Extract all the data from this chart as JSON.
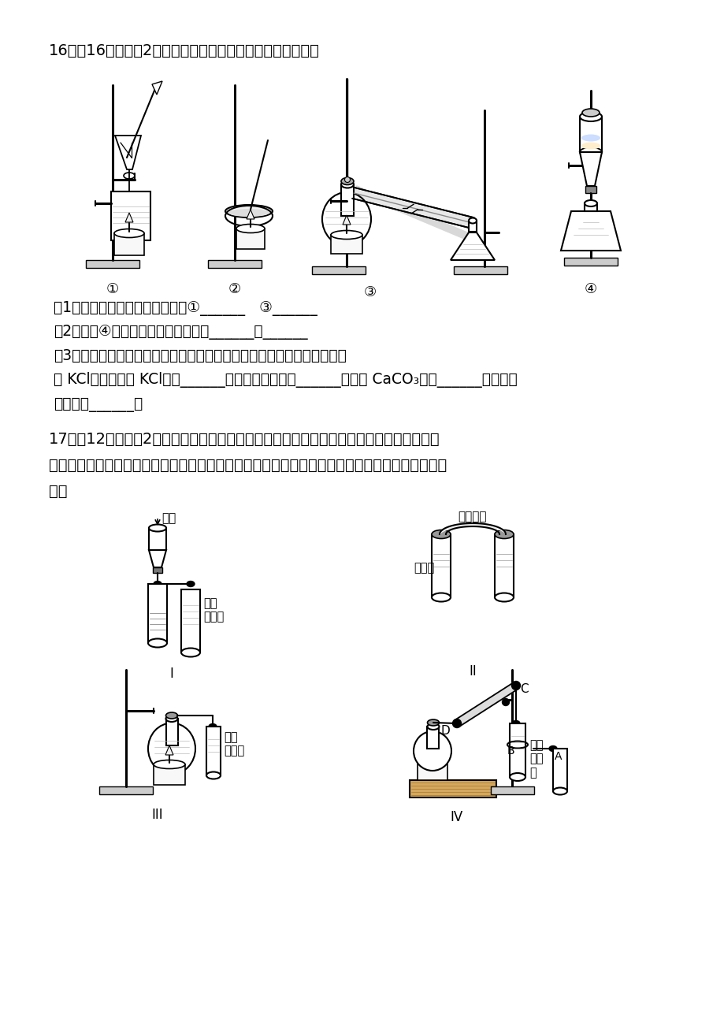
{
  "page_bg": "#ffffff",
  "title_q16": "16、（16分，每穲2分）观察下列实验装置图，按要求作答：",
  "q16_q1": "（1）写出图中实验操作的名称：①______   ③______",
  "q16_q2": "（2）装置④中所有玻璃付器的名称：______，______",
  "q16_q3": "（3）下列实验需要在哪套装置中进行：（填序号，每套装置仅使用一次）",
  "q16_q3b": "从 KCl溶液中获取 KCl晶体______；从海水中提取水______；分离 CaCO₃和水______；分离植",
  "q16_q3c": "物油和水______。",
  "title_q17": "17、（12分，每穲2分）钓是一种应用广泛的金属，钓及其化合物在生产生活中应用广泛。",
  "q17_intro": "某校化学课外小组为了鉴别碳酸钓和碳酸氢钓两种白色固体，用不同的方法做了以下实验，如图所",
  "q17_intro2": "示。",
  "label_hcl": "盐酸",
  "label_limewater": "澳清\n石灰水",
  "label_equal": "质量相等",
  "label_dilhcl": "稀盐酸",
  "label_limewater2": "澳清\n石灰水",
  "label_limewater3": "澳清\n石灰\n水",
  "roman_I": "I",
  "roman_II": "II",
  "roman_III": "III",
  "roman_IV": "IV"
}
